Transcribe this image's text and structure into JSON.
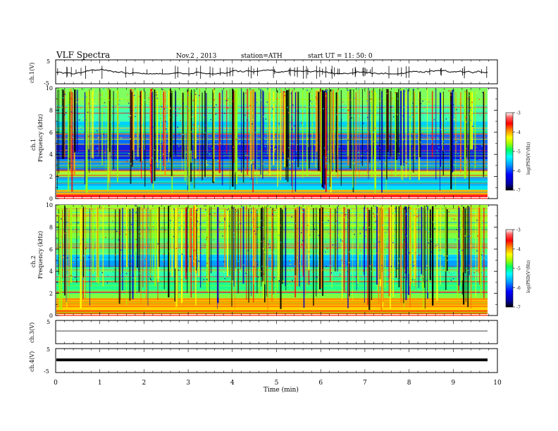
{
  "header": {
    "title": "VLF  Spectra",
    "date": "Nov.2  , 2013",
    "station": "station=ATH",
    "start": "start  UT  =   11: 50: 0"
  },
  "chart_data": [
    {
      "type": "line",
      "panel": "ch1-waveform",
      "ylabel": "ch.1(V)",
      "ylim": [
        -5,
        5
      ],
      "yticks": [
        "5",
        "-5"
      ],
      "xlim": [
        0,
        10
      ]
    },
    {
      "type": "heatmap",
      "panel": "ch1-spectrogram",
      "ylabel_top": "ch.1",
      "ylabel": "Frequency  (kHz)",
      "ylim": [
        0,
        10
      ],
      "yticks": [
        "0",
        "2",
        "4",
        "6",
        "8",
        "10"
      ],
      "xlim": [
        0,
        10
      ],
      "colorbar": {
        "label": "log(PSD(V²/Hz)",
        "range": [
          -7,
          -3
        ],
        "ticks": [
          "-3",
          "-4",
          "-5",
          "-6",
          "-7"
        ]
      }
    },
    {
      "type": "heatmap",
      "panel": "ch2-spectrogram",
      "ylabel_top": "ch.2",
      "ylabel": "Frequency  (kHz)",
      "ylim": [
        0,
        10
      ],
      "yticks": [
        "0",
        "2",
        "4",
        "6",
        "8",
        "10"
      ],
      "xlim": [
        0,
        10
      ],
      "colorbar": {
        "label": "log(PSD(V²/Hz)",
        "range": [
          -7,
          -3
        ],
        "ticks": [
          "-3",
          "-4",
          "-5",
          "-6",
          "-7"
        ]
      }
    },
    {
      "type": "line",
      "panel": "ch3-waveform",
      "ylabel": "ch.3(V)",
      "ylim": [
        -5,
        5
      ],
      "yticks": [
        "5"
      ],
      "xlim": [
        0,
        10
      ]
    },
    {
      "type": "line",
      "panel": "ch4-waveform",
      "ylabel": "ch.4(V)",
      "ylim": [
        -5,
        5
      ],
      "yticks": [
        "5",
        "-5"
      ],
      "xlim": [
        0,
        10
      ],
      "xlabel": "Time  (min)",
      "xticks": [
        "0",
        "1",
        "2",
        "3",
        "4",
        "5",
        "6",
        "7",
        "8",
        "9",
        "10"
      ]
    }
  ],
  "colors": {
    "scale": [
      "#000000",
      "#0000a0",
      "#0000ff",
      "#00a0ff",
      "#00ffff",
      "#00ff60",
      "#a0ff00",
      "#ffff00",
      "#ff8000",
      "#ff0000",
      "#ff4040",
      "#ffffff"
    ]
  }
}
